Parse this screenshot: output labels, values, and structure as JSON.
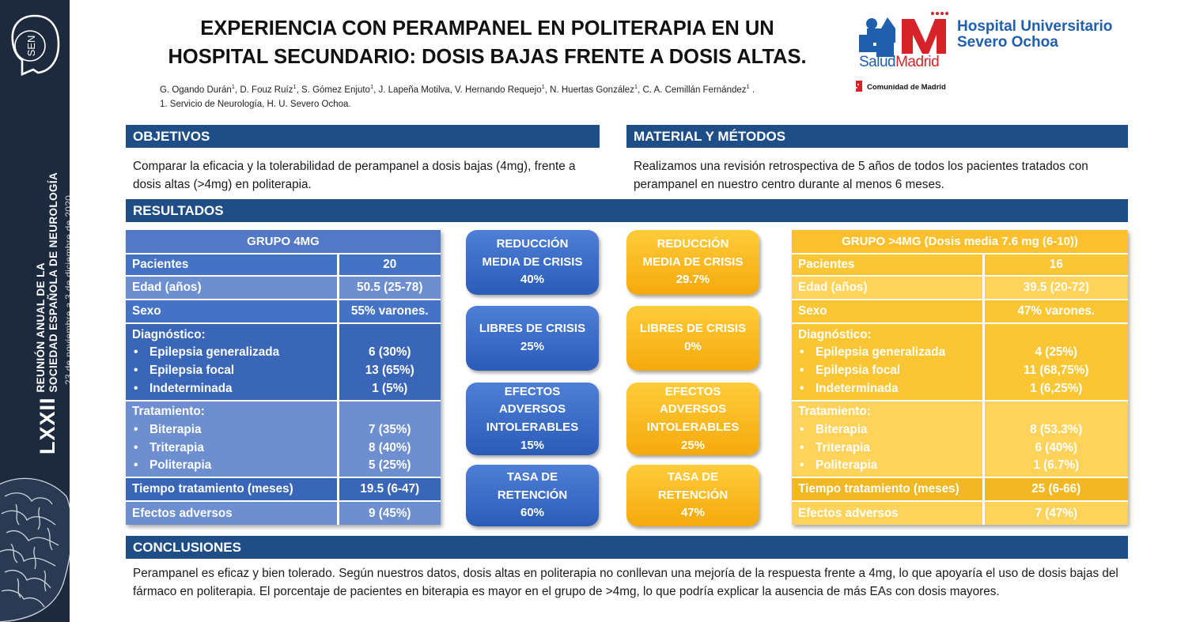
{
  "sidebar": {
    "logo_text": "SEN",
    "roman": "LXXII",
    "line1": "REUNIÓN ANUAL DE LA",
    "line2": "SOCIEDAD ESPAÑOLA DE NEUROLOGÍA",
    "date": "23 de noviembre a 3 de diciembre de 2020"
  },
  "header": {
    "title_line1": "EXPERIENCIA CON PERAMPANEL EN POLITERAPIA EN UN",
    "title_line2": "HOSPITAL SECUNDARIO: DOSIS BAJAS FRENTE A DOSIS ALTAS.",
    "authors": [
      {
        "name": "G. Ogando Durán",
        "sup": "1"
      },
      {
        "name": "D. Fouz Ruíz",
        "sup": "1"
      },
      {
        "name": "S. Gómez Enjuto",
        "sup": "1"
      },
      {
        "name": "J. Lapeña Motilva",
        "sup": ""
      },
      {
        "name": "V. Hernando Requejo",
        "sup": "1"
      },
      {
        "name": "N. Huertas González",
        "sup": "1"
      },
      {
        "name": "C. A. Cemillán Fernández",
        "sup": "1"
      }
    ],
    "affiliation": "1. Servicio de Neurología, H. U. Severo Ochoa."
  },
  "hospital": {
    "name_line1": "Hospital Universitario",
    "name_line2": "Severo Ochoa",
    "salud": "Salud",
    "madrid": "Madrid",
    "comunidad": "Comunidad de Madrid",
    "brand_blue": "#1f5fae",
    "brand_red": "#d6232a"
  },
  "objetivos": {
    "heading": "OBJETIVOS",
    "text": "Comparar la eficacia y la tolerabilidad de perampanel a dosis bajas (4mg), frente a dosis altas (>4mg) en politerapia."
  },
  "metodos": {
    "heading": "MATERIAL Y MÉTODOS",
    "text": "Realizamos una revisión retrospectiva de 5 años de todos los pacientes tratados con perampanel en nuestro centro durante al menos 6 meses."
  },
  "resultados": {
    "heading": "RESULTADOS",
    "group4": {
      "title": "GRUPO 4MG",
      "pacientes": {
        "label": "Pacientes",
        "value": "20"
      },
      "edad": {
        "label": "Edad (años)",
        "value": "50.5 (25-78)"
      },
      "sexo": {
        "label": "Sexo",
        "value": "55% varones."
      },
      "diagnostico": {
        "label": "Diagnóstico:",
        "items": [
          "Epilepsia generalizada",
          "Epilepsia focal",
          "Indeterminada"
        ],
        "values": [
          "6 (30%)",
          "13 (65%)",
          "1 (5%)"
        ]
      },
      "tratamiento": {
        "label": "Tratamiento:",
        "items": [
          "Biterapia",
          "Triterapia",
          "Politerapia"
        ],
        "values": [
          "7 (35%)",
          "8 (40%)",
          "5 (25%)"
        ]
      },
      "tiempo": {
        "label": "Tiempo tratamiento (meses)",
        "value": "19.5 (6-47)"
      },
      "efectos": {
        "label": "Efectos adversos",
        "value": "9 (45%)"
      }
    },
    "group7": {
      "title": "GRUPO >4MG (Dosis media 7.6 mg (6-10))",
      "pacientes": {
        "label": "Pacientes",
        "value": "16"
      },
      "edad": {
        "label": "Edad (años)",
        "value": "39.5 (20-72)"
      },
      "sexo": {
        "label": "Sexo",
        "value": "47% varones."
      },
      "diagnostico": {
        "label": "Diagnóstico:",
        "items": [
          "Epilepsia generalizada",
          "Epilepsia focal",
          "Indeterminada"
        ],
        "values": [
          "4 (25%)",
          "11 (68,75%)",
          "1 (6,25%)"
        ]
      },
      "tratamiento": {
        "label": "Tratamiento:",
        "items": [
          "Biterapia",
          "Triterapia",
          "Politerapia"
        ],
        "values": [
          "8 (53.3%)",
          "6 (40%)",
          "1 (6.7%)"
        ]
      },
      "tiempo": {
        "label": "Tiempo tratamiento (meses)",
        "value": "25 (6-66)"
      },
      "efectos": {
        "label": "Efectos adversos",
        "value": "7 (47%)"
      }
    },
    "boxes_4mg": [
      {
        "lines": [
          "REDUCCIÓN",
          "MEDIA DE CRISIS",
          "40%"
        ]
      },
      {
        "lines": [
          "LIBRES DE CRISIS",
          "25%"
        ]
      },
      {
        "lines": [
          "EFECTOS",
          "ADVERSOS",
          "INTOLERABLES",
          "15%"
        ]
      },
      {
        "lines": [
          "TASA DE",
          "RETENCIÓN",
          "60%"
        ]
      }
    ],
    "boxes_high": [
      {
        "lines": [
          "REDUCCIÓN",
          "MEDIA DE CRISIS",
          "29.7%"
        ]
      },
      {
        "lines": [
          "LIBRES DE CRISIS",
          "0%"
        ]
      },
      {
        "lines": [
          "EFECTOS",
          "ADVERSOS",
          "INTOLERABLES",
          "25%"
        ]
      },
      {
        "lines": [
          "TASA DE",
          "RETENCIÓN",
          "47%"
        ]
      }
    ]
  },
  "conclusiones": {
    "heading": "CONCLUSIONES",
    "text": "Perampanel es eficaz y bien tolerado. Según nuestros datos, dosis altas en politerapia no conllevan una mejoría de la respuesta frente a 4mg, lo que apoyaría el uso de dosis bajas del fármaco en politerapia. El porcentaje de pacientes en biterapia es mayor en el grupo de >4mg, lo que podría explicar la ausencia de más EAs con dosis mayores."
  },
  "colors": {
    "section_blue": "#1f4e86",
    "group4_blue": "#4472c4",
    "group_high_gold": "#fbc634",
    "sidebar_navy": "#1d2a3e"
  }
}
